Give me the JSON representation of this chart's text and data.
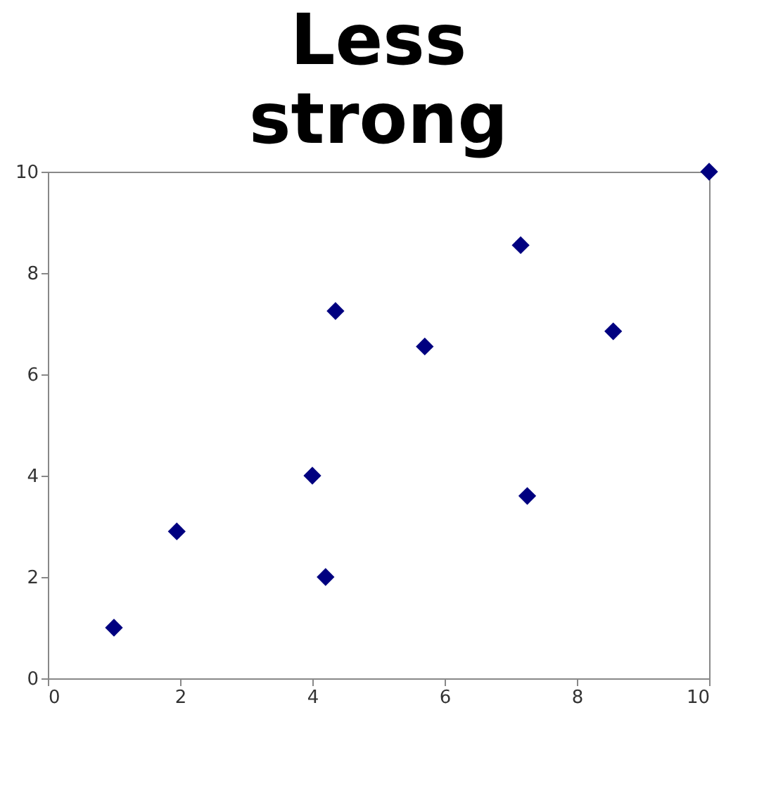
{
  "chart_data": {
    "type": "scatter",
    "title": "Less strong",
    "x": [
      1,
      1.95,
      4,
      4.2,
      4.35,
      5.7,
      7.15,
      7.25,
      8.55,
      10
    ],
    "series": [
      {
        "color": "#000080",
        "values": [
          1,
          2.9,
          4,
          2,
          7.25,
          6.55,
          8.55,
          3.6,
          6.85,
          10
        ]
      }
    ],
    "xlim": [
      0,
      10
    ],
    "xticks": [
      0,
      2,
      4,
      6,
      8,
      10
    ],
    "ylim": [
      0,
      10
    ],
    "yticks": [
      0,
      2,
      4,
      6,
      8,
      10
    ],
    "grid": false,
    "marker": "diamond"
  }
}
